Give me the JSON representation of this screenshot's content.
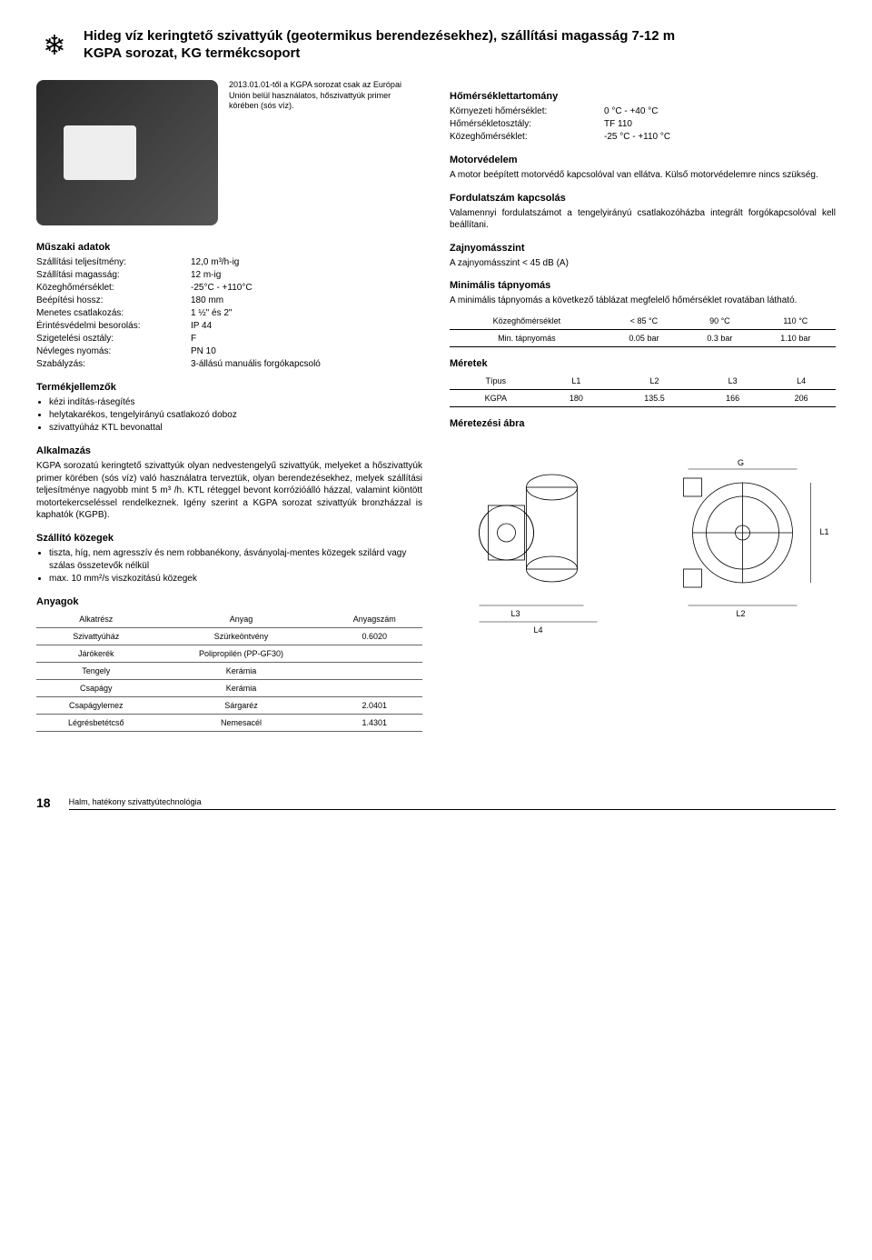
{
  "header": {
    "title1": "Hideg víz keringtető szivattyúk (geotermikus berendezésekhez), szállítási magasság 7-12 m",
    "title2": "KGPA sorozat, KG termékcsoport"
  },
  "caption": "2013.01.01-től a KGPA sorozat csak az Európai Unión belül használatos, hőszivattyúk primer körében (sós víz).",
  "temp_range": {
    "title": "Hőmérséklettartomány",
    "rows": [
      {
        "k": "Környezeti hőmérséklet:",
        "v": "0 °C - +40 °C"
      },
      {
        "k": "Hőmérsékletosztály:",
        "v": "TF 110"
      },
      {
        "k": "Közeghőmérséklet:",
        "v": "-25 °C - +110 °C"
      }
    ]
  },
  "motor": {
    "title": "Motorvédelem",
    "body": "A motor beépített motorvédő kapcsolóval van ellátva. Külső motorvédelemre nincs szükség."
  },
  "fordulat": {
    "title": "Fordulatszám kapcsolás",
    "body": "Valamennyi fordulatszámot a tengelyirányú csatlakozóházba integrált forgókapcsolóval kell beállítani."
  },
  "zaj": {
    "title": "Zajnyomásszint",
    "body": "A zajnyomásszint < 45 dB (A)"
  },
  "muszaki": {
    "title": "Műszaki adatok",
    "rows": [
      {
        "k": "Szállítási teljesítmény:",
        "v": "12,0 m³/h-ig"
      },
      {
        "k": "Szállítási magasság:",
        "v": "12 m-ig"
      },
      {
        "k": "Közeghőmérséklet:",
        "v": "-25°C - +110°C"
      },
      {
        "k": "Beépítési hossz:",
        "v": "180 mm"
      },
      {
        "k": "Menetes csatlakozás:",
        "v": "1 ½\" és 2\""
      },
      {
        "k": "Érintésvédelmi besorolás:",
        "v": "IP 44"
      },
      {
        "k": "Szigetelési osztály:",
        "v": "F"
      },
      {
        "k": "Névleges nyomás:",
        "v": "PN 10"
      },
      {
        "k": "Szabályzás:",
        "v": "3-állású manuális forgókapcsoló"
      }
    ]
  },
  "min_tap": {
    "title": "Minimális tápnyomás",
    "body": "A minimális tápnyomás a következő táblázat megfelelő hőmérséklet rovatában látható.",
    "table": {
      "headers": [
        "Közeghőmérséklet",
        "< 85 °C",
        "90 °C",
        "110 °C"
      ],
      "rows": [
        [
          "Min. tápnyomás",
          "0.05 bar",
          "0.3 bar",
          "1.10 bar"
        ]
      ]
    }
  },
  "meretek": {
    "title": "Méretek",
    "table": {
      "headers": [
        "Típus",
        "L1",
        "L2",
        "L3",
        "L4"
      ],
      "rows": [
        [
          "KGPA",
          "180",
          "135.5",
          "166",
          "206"
        ]
      ]
    }
  },
  "termek": {
    "title": "Termékjellemzők",
    "items": [
      "kézi indítás-rásegítés",
      "helytakarékos, tengelyirányú csatlakozó doboz",
      "szivattyúház KTL bevonattal"
    ]
  },
  "meretezesi": {
    "title": "Méretezési ábra",
    "labels": {
      "G": "G",
      "L1": "L1",
      "L2": "L2",
      "L3": "L3",
      "L4": "L4"
    },
    "line_color": "#000",
    "line_width": 0.8
  },
  "alkalmazas": {
    "title": "Alkalmazás",
    "body": "KGPA sorozatú keringtető szivattyúk olyan nedvestengelyű szivattyúk, melyeket a hőszivattyúk primer körében (sós víz) való használatra terveztük, olyan berendezésekhez, melyek szállítási teljesítménye nagyobb mint 5 m³ /h. KTL réteggel bevont korrózióálló házzal, valamint kiöntött motortekercseléssel rendelkeznek. Igény szerint a KGPA sorozat szivattyúk bronzházzal is kaphatók (KGPB)."
  },
  "szallito": {
    "title": "Szállító közegek",
    "items": [
      "tiszta, híg, nem agresszív és nem robbanékony, ásványolaj-mentes közegek szilárd vagy szálas összetevők nélkül",
      "max. 10 mm²/s viszkozitású közegek"
    ]
  },
  "anyagok": {
    "title": "Anyagok",
    "headers": [
      "Alkatrész",
      "Anyag",
      "Anyagszám"
    ],
    "rows": [
      [
        "Szivattyúház",
        "Szürkeöntvény",
        "0.6020"
      ],
      [
        "Járókerék",
        "Polipropilén (PP-GF30)",
        ""
      ],
      [
        "Tengely",
        "Kerámia",
        ""
      ],
      [
        "Csapágy",
        "Kerámia",
        ""
      ],
      [
        "Csapágylemez",
        "Sárgaréz",
        "2.0401"
      ],
      [
        "Légrésbetétcső",
        "Nemesacél",
        "1.4301"
      ]
    ]
  },
  "footer": {
    "page": "18",
    "text": "Halm, hatékony szivattyútechnológia"
  }
}
